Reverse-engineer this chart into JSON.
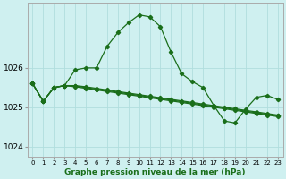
{
  "title": "Graphe pression niveau de la mer (hPa)",
  "hours": [
    0,
    1,
    2,
    3,
    4,
    5,
    6,
    7,
    8,
    9,
    10,
    11,
    12,
    13,
    14,
    15,
    16,
    17,
    18,
    19,
    20,
    21,
    22,
    23
  ],
  "line_main": [
    1025.6,
    1025.15,
    1025.5,
    1025.55,
    1025.95,
    1026.0,
    1026.0,
    1026.55,
    1026.9,
    1027.15,
    1027.35,
    1027.3,
    1027.05,
    1026.4,
    1025.85,
    1025.65,
    1025.5,
    1025.05,
    1024.65,
    1024.6,
    1024.95,
    1025.25,
    1025.3,
    1025.2
  ],
  "line_fc1": [
    1025.6,
    1025.15,
    1025.5,
    1025.55,
    1025.55,
    1025.52,
    1025.48,
    1025.44,
    1025.4,
    1025.36,
    1025.32,
    1025.28,
    1025.24,
    1025.2,
    1025.16,
    1025.12,
    1025.08,
    1025.04,
    1025.0,
    1024.96,
    1024.92,
    1024.88,
    1024.84,
    1024.8
  ],
  "line_fc2": [
    1025.6,
    1025.15,
    1025.5,
    1025.55,
    1025.52,
    1025.48,
    1025.44,
    1025.4,
    1025.36,
    1025.32,
    1025.28,
    1025.24,
    1025.2,
    1025.16,
    1025.12,
    1025.08,
    1025.04,
    1025.0,
    1024.96,
    1024.92,
    1024.88,
    1024.84,
    1024.8,
    1024.76
  ],
  "line_fc3": [
    1025.6,
    1025.15,
    1025.5,
    1025.55,
    1025.54,
    1025.5,
    1025.46,
    1025.42,
    1025.38,
    1025.34,
    1025.3,
    1025.26,
    1025.22,
    1025.18,
    1025.14,
    1025.1,
    1025.06,
    1025.02,
    1024.98,
    1024.94,
    1024.9,
    1024.86,
    1024.82,
    1024.78
  ],
  "line_color": "#1a6e1a",
  "bg_color": "#cff0f0",
  "grid_color": "#b0dede",
  "ylim": [
    1023.75,
    1027.65
  ],
  "yticks": [
    1024,
    1025,
    1026
  ],
  "xlim": [
    -0.5,
    23.5
  ]
}
